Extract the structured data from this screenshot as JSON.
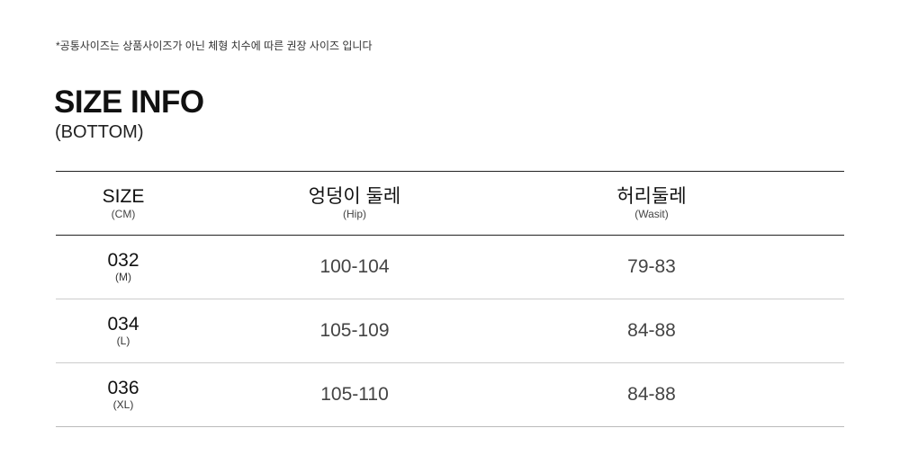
{
  "note": "*공통사이즈는 상품사이즈가 아닌 체형 치수에 따른 권장 사이즈 입니다",
  "title": "SIZE INFO",
  "subtitle": "(BOTTOM)",
  "table": {
    "headers": [
      {
        "label": "SIZE",
        "sub": "(CM)"
      },
      {
        "label": "엉덩이 둘레",
        "sub": "(Hip)"
      },
      {
        "label": "허리둘레",
        "sub": "(Wasit)"
      }
    ],
    "rows": [
      {
        "size": "032",
        "size_sub": "(M)",
        "hip": "100-104",
        "waist": "79-83"
      },
      {
        "size": "034",
        "size_sub": "(L)",
        "hip": "105-109",
        "waist": "84-88"
      },
      {
        "size": "036",
        "size_sub": "(XL)",
        "hip": "105-110",
        "waist": "84-88"
      }
    ]
  }
}
